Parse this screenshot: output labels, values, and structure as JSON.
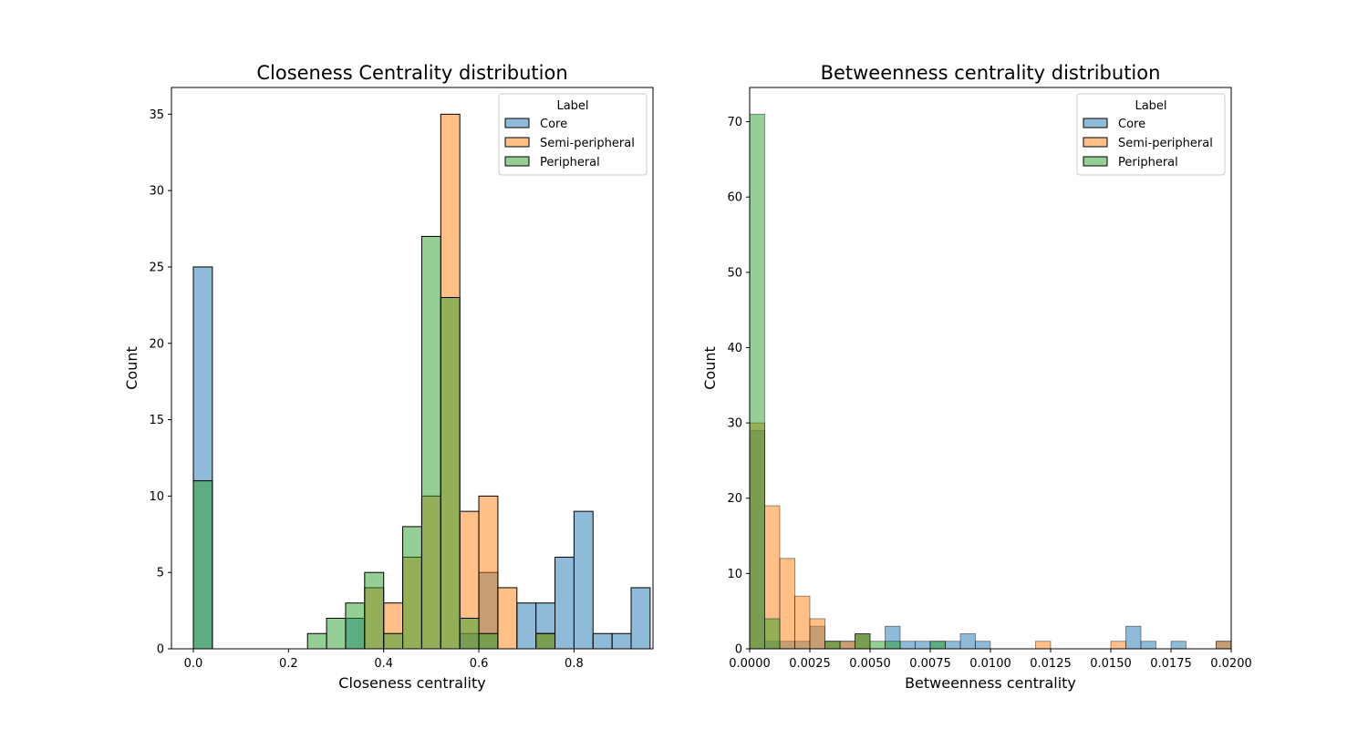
{
  "chart_data": [
    {
      "type": "histogram",
      "title": "Closeness Centrality distribution",
      "xlabel": "Closeness centrality",
      "ylabel": "Count",
      "xlim": [
        -0.046,
        0.966
      ],
      "ylim": [
        0,
        36.75
      ],
      "xticks": [
        0.0,
        0.2,
        0.4,
        0.6,
        0.8
      ],
      "xtick_labels": [
        "0.0",
        "0.2",
        "0.4",
        "0.6",
        "0.8"
      ],
      "yticks": [
        0,
        5,
        10,
        15,
        20,
        25,
        30,
        35
      ],
      "ytick_labels": [
        "0",
        "5",
        "10",
        "15",
        "20",
        "25",
        "30",
        "35"
      ],
      "bin_width": 0.04,
      "legend": {
        "title": "Label",
        "position": "top-right"
      },
      "series": [
        {
          "name": "Core",
          "color": "#1f77b4",
          "bins": [
            [
              0.0,
              25
            ],
            [
              0.32,
              2
            ],
            [
              0.56,
              1
            ],
            [
              0.6,
              5
            ],
            [
              0.68,
              3
            ],
            [
              0.72,
              3
            ],
            [
              0.76,
              6
            ],
            [
              0.8,
              9
            ],
            [
              0.84,
              1
            ],
            [
              0.88,
              1
            ],
            [
              0.92,
              4
            ]
          ]
        },
        {
          "name": "Semi-peripheral",
          "color": "#ff7f0e",
          "bins": [
            [
              0.36,
              4
            ],
            [
              0.4,
              3
            ],
            [
              0.44,
              6
            ],
            [
              0.48,
              10
            ],
            [
              0.52,
              35
            ],
            [
              0.56,
              9
            ],
            [
              0.6,
              10
            ],
            [
              0.64,
              4
            ],
            [
              0.72,
              1
            ]
          ]
        },
        {
          "name": "Peripheral",
          "color": "#2ca02c",
          "bins": [
            [
              0.0,
              11
            ],
            [
              0.24,
              1
            ],
            [
              0.28,
              2
            ],
            [
              0.32,
              3
            ],
            [
              0.36,
              5
            ],
            [
              0.4,
              1
            ],
            [
              0.44,
              8
            ],
            [
              0.48,
              27
            ],
            [
              0.52,
              23
            ],
            [
              0.56,
              2
            ],
            [
              0.6,
              1
            ],
            [
              0.72,
              1
            ]
          ]
        }
      ]
    },
    {
      "type": "histogram",
      "title": "Betweenness centrality distribution",
      "xlabel": "Betweenness centrality",
      "ylabel": "Count",
      "xlim": [
        0,
        0.02
      ],
      "ylim": [
        0,
        74.55
      ],
      "xticks": [
        0.0,
        0.0025,
        0.005,
        0.0075,
        0.01,
        0.0125,
        0.015,
        0.0175,
        0.02
      ],
      "xtick_labels": [
        "0.0000",
        "0.0025",
        "0.0050",
        "0.0075",
        "0.0100",
        "0.0125",
        "0.0150",
        "0.0175",
        "0.0200"
      ],
      "yticks": [
        0,
        10,
        20,
        30,
        40,
        50,
        60,
        70
      ],
      "ytick_labels": [
        "0",
        "10",
        "20",
        "30",
        "40",
        "50",
        "60",
        "70"
      ],
      "bin_width": 0.000625,
      "legend": {
        "title": "Label",
        "position": "top-right"
      },
      "series": [
        {
          "name": "Core",
          "color": "#1f77b4",
          "bins": [
            [
              0.0,
              29
            ],
            [
              0.000625,
              1
            ],
            [
              0.00125,
              1
            ],
            [
              0.001875,
              1
            ],
            [
              0.0025,
              3
            ],
            [
              0.003125,
              1
            ],
            [
              0.00375,
              1
            ],
            [
              0.004375,
              2
            ],
            [
              0.005625,
              3
            ],
            [
              0.00625,
              1
            ],
            [
              0.006875,
              1
            ],
            [
              0.0075,
              1
            ],
            [
              0.008125,
              1
            ],
            [
              0.00875,
              2
            ],
            [
              0.009375,
              1
            ],
            [
              0.015625,
              3
            ],
            [
              0.01625,
              1
            ],
            [
              0.016875,
              0
            ],
            [
              0.0175,
              1
            ],
            [
              0.019375,
              1
            ]
          ]
        },
        {
          "name": "Semi-peripheral",
          "color": "#ff7f0e",
          "bins": [
            [
              0.0,
              30
            ],
            [
              0.000625,
              19
            ],
            [
              0.00125,
              12
            ],
            [
              0.001875,
              7
            ],
            [
              0.0025,
              4
            ],
            [
              0.003125,
              1
            ],
            [
              0.00375,
              1
            ],
            [
              0.004375,
              2
            ],
            [
              0.011875,
              1
            ],
            [
              0.015,
              1
            ],
            [
              0.019375,
              1
            ]
          ]
        },
        {
          "name": "Peripheral",
          "color": "#2ca02c",
          "bins": [
            [
              0.0,
              71
            ],
            [
              0.000625,
              4
            ],
            [
              0.003125,
              1
            ],
            [
              0.004375,
              2
            ],
            [
              0.005,
              1
            ],
            [
              0.005625,
              1
            ],
            [
              0.0075,
              1
            ]
          ]
        }
      ]
    }
  ]
}
